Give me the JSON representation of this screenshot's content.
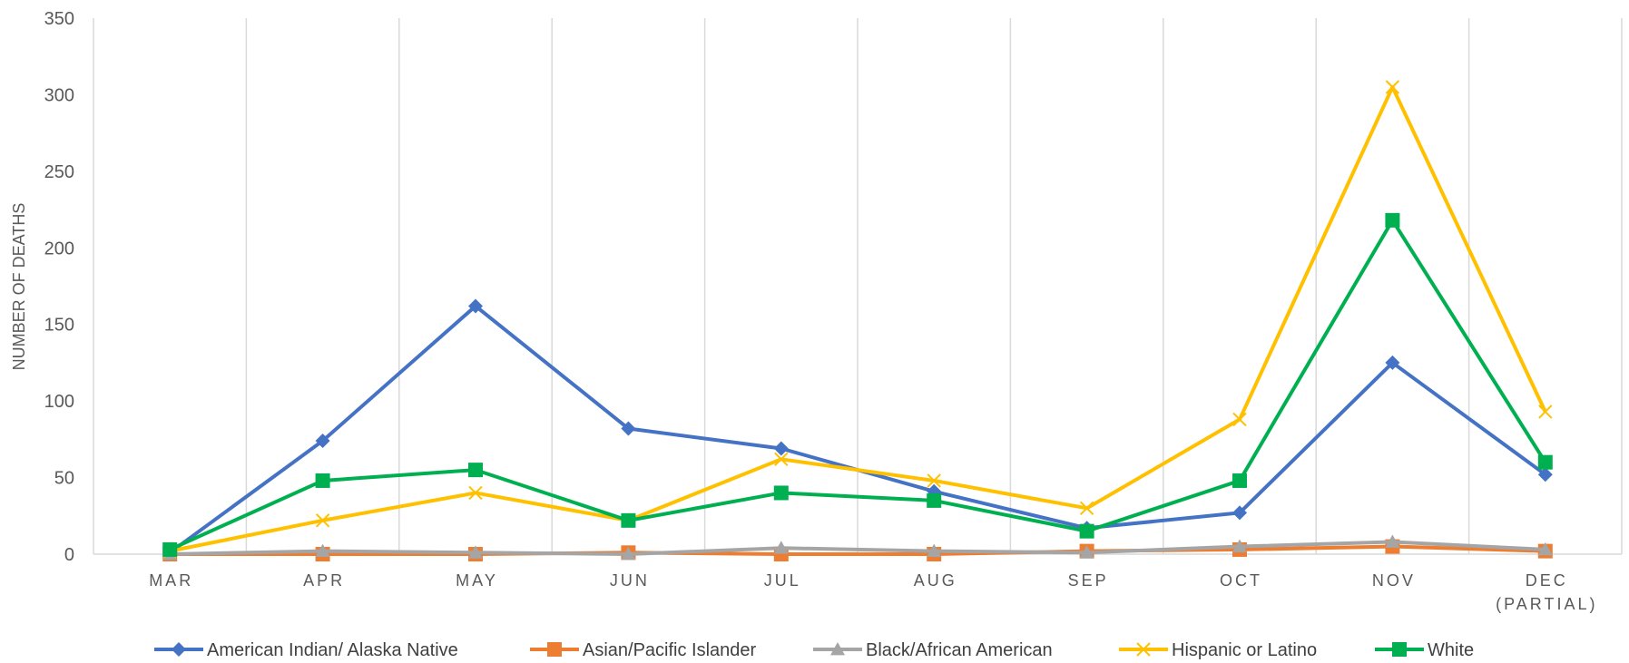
{
  "chart_data": {
    "type": "line",
    "title": "",
    "xlabel": "",
    "ylabel": "NUMBER OF DEATHS",
    "ylim": [
      0,
      350
    ],
    "yticks": [
      0,
      50,
      100,
      150,
      200,
      250,
      300,
      350
    ],
    "categories": [
      [
        "MAR"
      ],
      [
        "APR"
      ],
      [
        "MAY"
      ],
      [
        "JUN"
      ],
      [
        "JUL"
      ],
      [
        "AUG"
      ],
      [
        "SEP"
      ],
      [
        "OCT"
      ],
      [
        "NOV"
      ],
      [
        "DEC",
        "(PARTIAL)"
      ]
    ],
    "grid": "vertical",
    "legend_position": "bottom",
    "series": [
      {
        "name": "American Indian/ Alaska Native",
        "color": "#4472C4",
        "marker": "diamond",
        "values": [
          1,
          74,
          162,
          82,
          69,
          41,
          17,
          27,
          125,
          52
        ]
      },
      {
        "name": "Asian/Pacific Islander",
        "color": "#ED7D31",
        "marker": "square",
        "values": [
          0,
          0,
          0,
          1,
          0,
          0,
          2,
          3,
          5,
          2
        ]
      },
      {
        "name": "Black/African American",
        "color": "#A5A5A5",
        "marker": "triangle",
        "values": [
          0,
          2,
          1,
          0,
          4,
          2,
          1,
          5,
          8,
          3
        ]
      },
      {
        "name": "Hispanic or Latino",
        "color": "#FFC000",
        "marker": "x",
        "values": [
          2,
          22,
          40,
          22,
          62,
          48,
          30,
          88,
          305,
          93
        ]
      },
      {
        "name": "White",
        "color": "#00B050",
        "marker": "square",
        "values": [
          3,
          48,
          55,
          22,
          40,
          35,
          15,
          48,
          218,
          60
        ]
      }
    ]
  }
}
